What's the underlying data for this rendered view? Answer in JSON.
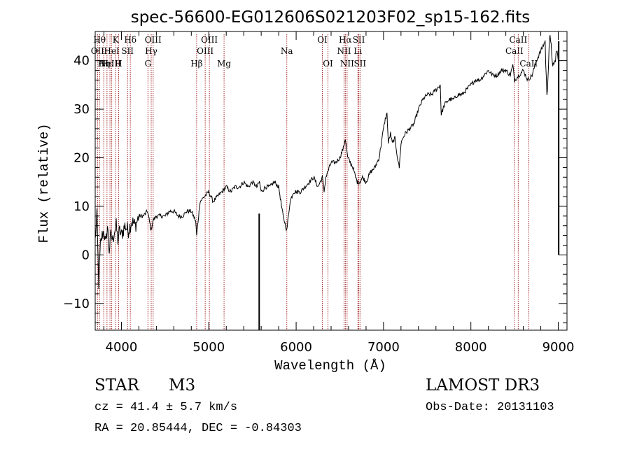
{
  "chart_data": {
    "type": "line",
    "title": "spec-56600-EG012606S021203F02_sp15-162.fits",
    "xlabel": "Wavelength (Å)",
    "ylabel": "Flux (relative)",
    "xlim": [
      3700,
      9100
    ],
    "ylim": [
      -15.5,
      46
    ],
    "x_ticks": [
      4000,
      5000,
      6000,
      7000,
      8000,
      9000
    ],
    "y_ticks": [
      -10,
      0,
      10,
      20,
      30,
      40
    ],
    "y_tick_labels": [
      "−10",
      "0",
      "10",
      "20",
      "30",
      "40"
    ],
    "grid": false,
    "series": [
      {
        "name": "flux",
        "x": [
          3700,
          3720,
          3740,
          3760,
          3780,
          3800,
          3820,
          3840,
          3860,
          3880,
          3900,
          3920,
          3940,
          3960,
          3980,
          4000,
          4040,
          4080,
          4120,
          4160,
          4200,
          4250,
          4300,
          4340,
          4360,
          4400,
          4450,
          4500,
          4550,
          4600,
          4650,
          4700,
          4750,
          4800,
          4850,
          4861,
          4900,
          4950,
          5000,
          5050,
          5100,
          5150,
          5200,
          5250,
          5300,
          5350,
          5400,
          5450,
          5500,
          5550,
          5580,
          5600,
          5650,
          5700,
          5750,
          5800,
          5850,
          5880,
          5893,
          5905,
          5930,
          5970,
          6000,
          6050,
          6100,
          6150,
          6200,
          6250,
          6300,
          6320,
          6340,
          6400,
          6450,
          6500,
          6540,
          6563,
          6590,
          6620,
          6650,
          6680,
          6700,
          6730,
          6760,
          6800,
          6850,
          6900,
          6950,
          7000,
          7020,
          7040,
          7055,
          7080,
          7100,
          7130,
          7160,
          7180,
          7200,
          7220,
          7250,
          7300,
          7350,
          7400,
          7450,
          7500,
          7550,
          7600,
          7650,
          7660,
          7700,
          7750,
          7800,
          7850,
          7900,
          7950,
          8000,
          8050,
          8100,
          8150,
          8200,
          8250,
          8300,
          8350,
          8400,
          8450,
          8480,
          8500,
          8550,
          8600,
          8650,
          8700,
          8750,
          8800,
          8850,
          8870,
          8900,
          8950,
          8980,
          9000
        ],
        "y": [
          3,
          8,
          -6,
          2,
          4,
          5,
          2,
          6,
          1,
          4,
          3,
          5,
          6,
          3,
          5,
          4,
          6,
          5,
          7,
          6,
          8,
          8,
          9,
          5,
          7,
          8,
          8,
          8,
          9,
          9,
          8,
          8,
          9,
          9,
          7,
          4,
          11,
          12,
          13,
          11,
          12,
          13,
          14,
          13,
          14,
          14,
          15,
          14,
          15,
          14,
          15,
          13,
          14,
          14,
          15,
          14,
          8,
          6,
          5,
          7,
          11,
          13,
          13,
          13,
          14,
          15,
          16,
          14,
          16,
          13,
          16,
          19,
          19,
          20,
          22,
          24,
          20,
          19,
          18,
          16,
          15,
          15,
          16,
          15,
          17,
          18,
          20,
          26,
          28,
          29,
          23,
          25,
          23,
          24,
          20,
          18,
          23,
          24,
          25,
          26,
          27,
          30,
          32,
          33,
          33,
          34,
          35,
          29,
          31,
          32,
          32,
          33,
          33,
          34,
          35,
          36,
          36,
          37,
          38,
          37,
          37,
          38,
          38,
          37,
          39,
          36,
          37,
          38,
          36,
          37,
          40,
          42,
          44,
          32,
          45,
          38,
          42,
          40
        ]
      }
    ],
    "spikes": [
      {
        "x": 5577,
        "y_from": 8.5,
        "y_to": -15.5
      },
      {
        "x": 9005,
        "y_from": 44,
        "y_to": 0
      }
    ],
    "line_markers": [
      {
        "wl": 3727,
        "label": "OII",
        "row": 1
      },
      {
        "wl": 3750,
        "label": "Hθ",
        "row": 0
      },
      {
        "wl": 3798,
        "label": "Hη",
        "row": 2
      },
      {
        "wl": 3835,
        "label": "Hε",
        "row": 2
      },
      {
        "wl": 3869,
        "label": "NeIII",
        "row": 2
      },
      {
        "wl": 3889,
        "label": "HeI",
        "row": 1
      },
      {
        "wl": 3934,
        "label": "K",
        "row": 0
      },
      {
        "wl": 3968,
        "label": "H",
        "row": 2
      },
      {
        "wl": 4070,
        "label": "SII",
        "row": 1
      },
      {
        "wl": 4102,
        "label": "Hδ",
        "row": 0
      },
      {
        "wl": 4304,
        "label": "G",
        "row": 2
      },
      {
        "wl": 4341,
        "label": "Hγ",
        "row": 1
      },
      {
        "wl": 4363,
        "label": "OIII",
        "row": 0
      },
      {
        "wl": 4861,
        "label": "Hβ",
        "row": 2
      },
      {
        "wl": 4959,
        "label": "OIII",
        "row": 1
      },
      {
        "wl": 5007,
        "label": "OIII",
        "row": 0
      },
      {
        "wl": 5175,
        "label": "Mg",
        "row": 2
      },
      {
        "wl": 5893,
        "label": "Na",
        "row": 1
      },
      {
        "wl": 6300,
        "label": "OI",
        "row": 0
      },
      {
        "wl": 6364,
        "label": "OI",
        "row": 2
      },
      {
        "wl": 6548,
        "label": "NII",
        "row": 1
      },
      {
        "wl": 6563,
        "label": "Hα",
        "row": 0
      },
      {
        "wl": 6583,
        "label": "NII",
        "row": 2
      },
      {
        "wl": 6707,
        "label": "Li",
        "row": 1
      },
      {
        "wl": 6717,
        "label": "SII",
        "row": 0
      },
      {
        "wl": 6731,
        "label": "SII",
        "row": 2
      },
      {
        "wl": 8498,
        "label": "CaII",
        "row": 1
      },
      {
        "wl": 8542,
        "label": "CaII",
        "row": 0
      },
      {
        "wl": 8662,
        "label": "CaII",
        "row": 2
      }
    ],
    "marker_color": "#a52a2a"
  },
  "info": {
    "class_label": "STAR",
    "subclass": "M3",
    "survey": "LAMOST DR3",
    "cz": "cz = 41.4 ± 5.7 km/s",
    "obs_date": "Obs-Date: 20131103",
    "radec": "RA =  20.85444, DEC =  -0.84303"
  }
}
